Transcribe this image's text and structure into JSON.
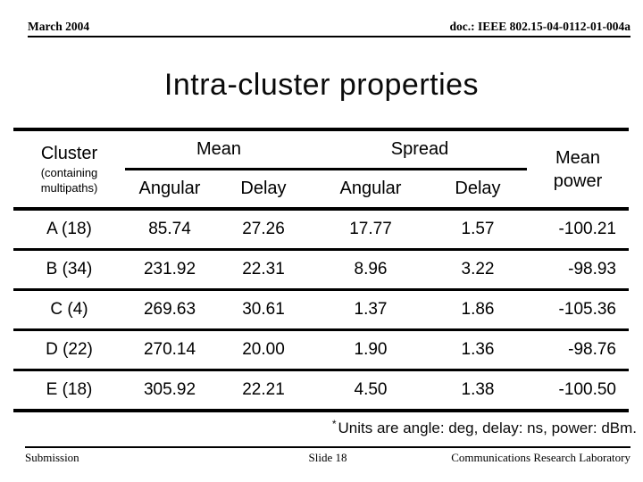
{
  "header": {
    "date": "March 2004",
    "doc": "doc.: IEEE 802.15-04-0112-01-004a"
  },
  "title": "Intra-cluster properties",
  "table": {
    "col_cluster": "Cluster",
    "col_cluster_sub_line1": "(containing",
    "col_cluster_sub_line2": "multipaths)",
    "group_mean": "Mean",
    "group_spread": "Spread",
    "col_mean_power": "Mean power",
    "sub_angular": "Angular",
    "sub_delay": "Delay",
    "rows": [
      {
        "cluster": "A (18)",
        "mean_angular": "85.74",
        "mean_delay": "27.26",
        "spread_angular": "17.77",
        "spread_delay": "1.57",
        "mean_power": "-100.21"
      },
      {
        "cluster": "B (34)",
        "mean_angular": "231.92",
        "mean_delay": "22.31",
        "spread_angular": "8.96",
        "spread_delay": "3.22",
        "mean_power": "-98.93"
      },
      {
        "cluster": "C (4)",
        "mean_angular": "269.63",
        "mean_delay": "30.61",
        "spread_angular": "1.37",
        "spread_delay": "1.86",
        "mean_power": "-105.36"
      },
      {
        "cluster": "D (22)",
        "mean_angular": "270.14",
        "mean_delay": "20.00",
        "spread_angular": "1.90",
        "spread_delay": "1.36",
        "mean_power": "-98.76"
      },
      {
        "cluster": "E (18)",
        "mean_angular": "305.92",
        "mean_delay": "22.21",
        "spread_angular": "4.50",
        "spread_delay": "1.38",
        "mean_power": "-100.50"
      }
    ]
  },
  "footnote": {
    "star": "*",
    "text": "Units are angle: deg, delay: ns, power: dBm."
  },
  "footer": {
    "left": "Submission",
    "center": "Slide 18",
    "right": "Communications Research Laboratory"
  },
  "colors": {
    "background": "#ffffff",
    "text": "#000000",
    "rule": "#000000"
  },
  "chart_data": {
    "type": "table",
    "title": "Intra-cluster properties",
    "columns": [
      "Cluster (containing multipaths)",
      "Mean Angular",
      "Mean Delay",
      "Spread Angular",
      "Spread Delay",
      "Mean power"
    ],
    "rows": [
      [
        "A (18)",
        85.74,
        27.26,
        17.77,
        1.57,
        -100.21
      ],
      [
        "B (34)",
        231.92,
        22.31,
        8.96,
        3.22,
        -98.93
      ],
      [
        "C (4)",
        269.63,
        30.61,
        1.37,
        1.86,
        -105.36
      ],
      [
        "D (22)",
        270.14,
        20.0,
        1.9,
        1.36,
        -98.76
      ],
      [
        "E (18)",
        305.92,
        22.21,
        4.5,
        1.38,
        -100.5
      ]
    ],
    "units_note": "Units are angle: deg, delay: ns, power: dBm."
  }
}
